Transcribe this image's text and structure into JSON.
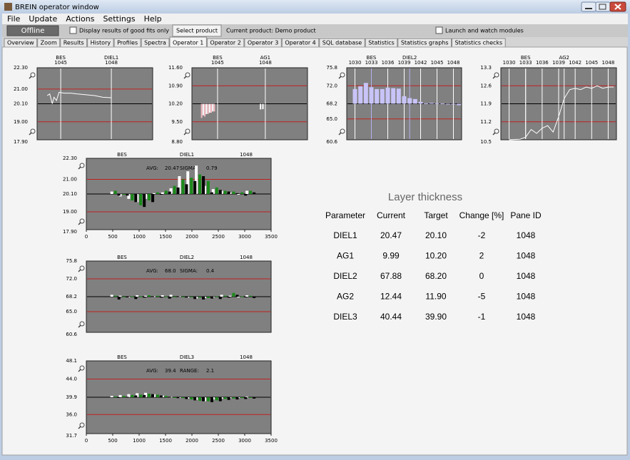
{
  "window": {
    "title": "BREIN operator window"
  },
  "menu": [
    "File",
    "Update",
    "Actions",
    "Settings",
    "Help"
  ],
  "toolbar": {
    "status": "Offline",
    "good_fits": "Display results of good fits only",
    "select_button": "Select product",
    "current_product": "Current product: Demo product",
    "launch": "Launch and watch modules"
  },
  "tabs": {
    "items": [
      "Overview",
      "Zoom",
      "Results",
      "History",
      "Profiles",
      "Spectra",
      "Operator 1",
      "Operator 2",
      "Operator 3",
      "Operator 4",
      "SQL database",
      "Statistics",
      "Statistics graphs",
      "Statistics checks"
    ],
    "active": 6
  },
  "plots": [
    {
      "type": "line",
      "xlim": [
        1043.6,
        1050.45
      ],
      "ylim": [
        17.9,
        22.3
      ],
      "yticks": [
        {
          "value": 22.3,
          "label": "22.30"
        },
        {
          "value": 21.0,
          "label": "21.00"
        },
        {
          "value": 20.1,
          "label": "20.10"
        },
        {
          "value": 19.0,
          "label": "19.00"
        },
        {
          "value": 17.9,
          "label": "17.90"
        }
      ],
      "markers": [
        {
          "label": "BES",
          "id": 1045
        },
        {
          "label": "DIEL1",
          "id": 1048
        }
      ],
      "marker_color": "#ffffff",
      "series": [
        {
          "color": "#ffffff",
          "x": [
            1044.2,
            1044.35,
            1044.5,
            1044.6,
            1044.75,
            1044.9,
            1045.2,
            1045.6,
            1046,
            1046.5,
            1047,
            1047.5,
            1048
          ],
          "values": [
            20.6,
            20.7,
            20.1,
            20.5,
            20.3,
            20.8,
            20.75,
            20.75,
            20.7,
            20.65,
            20.6,
            20.5,
            20.47
          ]
        }
      ]
    },
    {
      "type": "bar",
      "xlim": [
        1043.39,
        1050.65
      ],
      "ylim": [
        8.8,
        11.6
      ],
      "yticks": [
        {
          "value": 11.6,
          "label": "11.60"
        },
        {
          "value": 10.9,
          "label": "10.90"
        },
        {
          "value": 10.2,
          "label": "10.20"
        },
        {
          "value": 9.5,
          "label": "9.50"
        },
        {
          "value": 8.8,
          "label": "8.80"
        }
      ],
      "markers": [
        {
          "label": "BES",
          "id": 1045
        },
        {
          "label": "AG1",
          "id": 1048
        }
      ],
      "marker_color": "#ffffff",
      "series": [
        {
          "color": "#f2b8c0",
          "x": [
            1044.0,
            1044.2,
            1044.4,
            1044.6,
            1044.8
          ],
          "values": [
            9.65,
            9.7,
            9.8,
            9.85,
            9.9
          ]
        },
        {
          "color": "#ffffff",
          "x": [
            1044.1,
            1044.3,
            1044.5,
            1044.7,
            1047.7,
            1047.85
          ],
          "values": [
            9.75,
            9.8,
            9.85,
            9.9,
            9.98,
            9.99
          ]
        }
      ]
    },
    {
      "type": "bar",
      "xlim": [
        1028.5,
        1049.5
      ],
      "ylim": [
        60.6,
        75.8
      ],
      "yticks": [
        75.8,
        {
          "value": 72.0,
          "label": "72.0"
        },
        68.2,
        {
          "value": 65.0,
          "label": "65.0"
        },
        60.6
      ],
      "xticks": [
        1030,
        1033,
        1036,
        1039,
        1042,
        1045,
        1048
      ],
      "markers": [
        {
          "label": "BES",
          "x": 1033
        },
        {
          "label": "DIEL2",
          "x": 1040
        }
      ],
      "marker_color": "#b4b0f0",
      "series": [
        {
          "color": "#c8c4f8",
          "x": [
            1030,
            1031,
            1032,
            1033,
            1034,
            1035,
            1036,
            1037,
            1038,
            1039,
            1040,
            1041,
            1042,
            1043,
            1044,
            1045,
            1046,
            1047,
            1048,
            1049
          ],
          "values": [
            71.3,
            71.9,
            72.6,
            71.7,
            71.3,
            71.3,
            71.6,
            71.5,
            71.4,
            69.8,
            69.4,
            69.2,
            68.6,
            68.3,
            68.4,
            68.3,
            68.3,
            68.2,
            68.1,
            67.9
          ]
        }
      ]
    },
    {
      "type": "line",
      "xlim": [
        1028.5,
        1049.5
      ],
      "ylim": [
        10.5,
        13.3
      ],
      "yticks": [
        13.3,
        12.6,
        11.9,
        11.2,
        10.5
      ],
      "xticks": [
        1030,
        1033,
        1036,
        1039,
        1042,
        1045,
        1048
      ],
      "markers": [
        {
          "label": "BES",
          "x": 1033
        },
        {
          "label": "AG2",
          "x": 1040
        }
      ],
      "marker_color": "#ffffff",
      "series": [
        {
          "color": "#ffffff",
          "x": [
            1030,
            1032,
            1033,
            1034,
            1035,
            1036,
            1037,
            1038,
            1039,
            1040,
            1041,
            1042,
            1043,
            1044,
            1045,
            1046,
            1047,
            1048,
            1049
          ],
          "values": [
            10.5,
            10.52,
            10.6,
            10.9,
            10.75,
            10.95,
            11.05,
            10.8,
            11.4,
            12.1,
            12.45,
            12.5,
            12.45,
            12.55,
            12.5,
            12.6,
            12.5,
            12.55,
            12.55
          ]
        }
      ]
    }
  ],
  "statistics_plots": [
    {
      "type": "bar",
      "header": [
        "BES",
        "DIEL1",
        "1048"
      ],
      "stats": [
        "AVG:",
        "20.47",
        "SIGMA:",
        "0.79"
      ],
      "xlim": [
        0,
        3500
      ],
      "xticks": [
        0,
        500,
        1000,
        1500,
        2000,
        2500,
        3000,
        3500
      ],
      "ylim": [
        17.9,
        22.3
      ],
      "yticks": [
        {
          "value": 22.3,
          "label": "22.30"
        },
        {
          "value": 21.0,
          "label": "21.00"
        },
        {
          "value": 20.1,
          "label": "20.10"
        },
        {
          "value": 19.0,
          "label": "19.00"
        },
        {
          "value": 17.9,
          "label": "17.90"
        }
      ],
      "x": [
        550,
        710,
        870,
        1030,
        1190,
        1350,
        1510,
        1670,
        1830,
        1990,
        2150,
        2310,
        2470,
        2630,
        2790,
        2950,
        3110
      ],
      "series": [
        {
          "color": "#ffffff",
          "values": [
            20.25,
            19.95,
            19.8,
            19.6,
            19.8,
            20.15,
            20.2,
            20.45,
            21.2,
            21.5,
            21.85,
            20.6,
            20.4,
            20.3,
            20.2,
            20.1,
            20.3
          ]
        },
        {
          "color": "#1a8a1a",
          "values": [
            20.3,
            20.05,
            19.7,
            19.4,
            19.7,
            20.2,
            20.3,
            20.6,
            21.0,
            21.1,
            21.3,
            20.9,
            20.5,
            20.3,
            20.25,
            20.2,
            20.3
          ]
        },
        {
          "color": "#000000",
          "values": [
            20.0,
            20.0,
            19.6,
            19.3,
            19.6,
            20.1,
            20.25,
            20.5,
            20.7,
            20.9,
            21.2,
            20.2,
            20.35,
            20.25,
            20.15,
            20.0,
            20.2
          ]
        }
      ]
    },
    {
      "type": "bar",
      "header": [
        "BES",
        "DIEL2",
        "1048"
      ],
      "stats": [
        "AVG:",
        "68.0",
        "SIGMA:",
        "0.4"
      ],
      "xlim": [
        0,
        3500
      ],
      "xticks": [],
      "ylim": [
        60.6,
        75.8
      ],
      "yticks": [
        75.8,
        {
          "value": 72.0,
          "label": "72.0"
        },
        68.2,
        {
          "value": 65.0,
          "label": "65.0"
        },
        60.6
      ],
      "x": [
        550,
        710,
        870,
        1030,
        1190,
        1350,
        1510,
        1670,
        1830,
        1990,
        2150,
        2310,
        2470,
        2630,
        2790,
        2950,
        3110
      ],
      "series": [
        {
          "color": "#ffffff",
          "values": [
            68.6,
            68.4,
            68.1,
            68.5,
            68.4,
            68.3,
            68.5,
            68.6,
            68.3,
            68.0,
            67.8,
            67.9,
            68.1,
            68.6,
            68.4,
            68.2,
            68.5
          ]
        },
        {
          "color": "#1a8a1a",
          "values": [
            68.4,
            68.2,
            68.3,
            68.3,
            68.5,
            68.4,
            68.3,
            68.2,
            68.2,
            68.1,
            68.0,
            67.9,
            68.3,
            68.4,
            69.0,
            68.3,
            68.4
          ]
        },
        {
          "color": "#000000",
          "values": [
            67.6,
            68.1,
            67.7,
            68.0,
            68.3,
            68.0,
            67.8,
            68.3,
            68.0,
            67.7,
            67.6,
            67.8,
            67.7,
            68.0,
            68.6,
            68.1,
            67.9
          ]
        }
      ]
    },
    {
      "type": "bar",
      "header": [
        "BES",
        "DIEL3",
        "1048"
      ],
      "stats": [
        "AVG:",
        "39.4",
        "RANGE:",
        "2.1"
      ],
      "xlim": [
        0,
        3500
      ],
      "xticks": [
        0,
        500,
        1000,
        1500,
        2000,
        2500,
        3000,
        3500
      ],
      "ylim": [
        31.7,
        48.1
      ],
      "yticks": [
        48.1,
        {
          "value": 44.0,
          "label": "44.0"
        },
        39.9,
        {
          "value": 36.0,
          "label": "36.0"
        },
        31.7
      ],
      "x": [
        550,
        710,
        870,
        1030,
        1190,
        1350,
        1510,
        1670,
        1830,
        1990,
        2150,
        2310,
        2470,
        2630,
        2790,
        2950,
        3110
      ],
      "series": [
        {
          "color": "#ffffff",
          "values": [
            40.2,
            40.4,
            40.6,
            40.8,
            40.9,
            40.6,
            40.3,
            40.0,
            39.8,
            39.6,
            39.3,
            39.0,
            39.4,
            39.6,
            39.7,
            39.8,
            40.0
          ]
        },
        {
          "color": "#1a8a1a",
          "values": [
            40.1,
            40.2,
            40.4,
            40.5,
            40.7,
            40.5,
            40.2,
            39.9,
            39.7,
            39.4,
            39.1,
            39.0,
            39.2,
            39.5,
            39.6,
            39.7,
            39.8
          ]
        },
        {
          "color": "#000000",
          "values": [
            39.8,
            40.0,
            40.3,
            40.4,
            40.6,
            40.3,
            40.0,
            39.7,
            39.5,
            39.2,
            39.0,
            38.8,
            39.0,
            39.3,
            39.4,
            39.5,
            39.6
          ]
        }
      ]
    }
  ],
  "table": {
    "title": "Layer thickness",
    "header": [
      "Parameter",
      "Current",
      "Target",
      "Change [%]",
      "Pane ID"
    ],
    "rows": [
      [
        "DIEL1",
        "20.47",
        "20.10",
        "-2",
        "1048"
      ],
      [
        "AG1",
        "9.99",
        "10.20",
        "2",
        "1048"
      ],
      [
        "DIEL2",
        "67.88",
        "68.20",
        "0",
        "1048"
      ],
      [
        "AG2",
        "12.44",
        "11.90",
        "-5",
        "1048"
      ],
      [
        "DIEL3",
        "40.44",
        "39.90",
        "-1",
        "1048"
      ]
    ]
  }
}
